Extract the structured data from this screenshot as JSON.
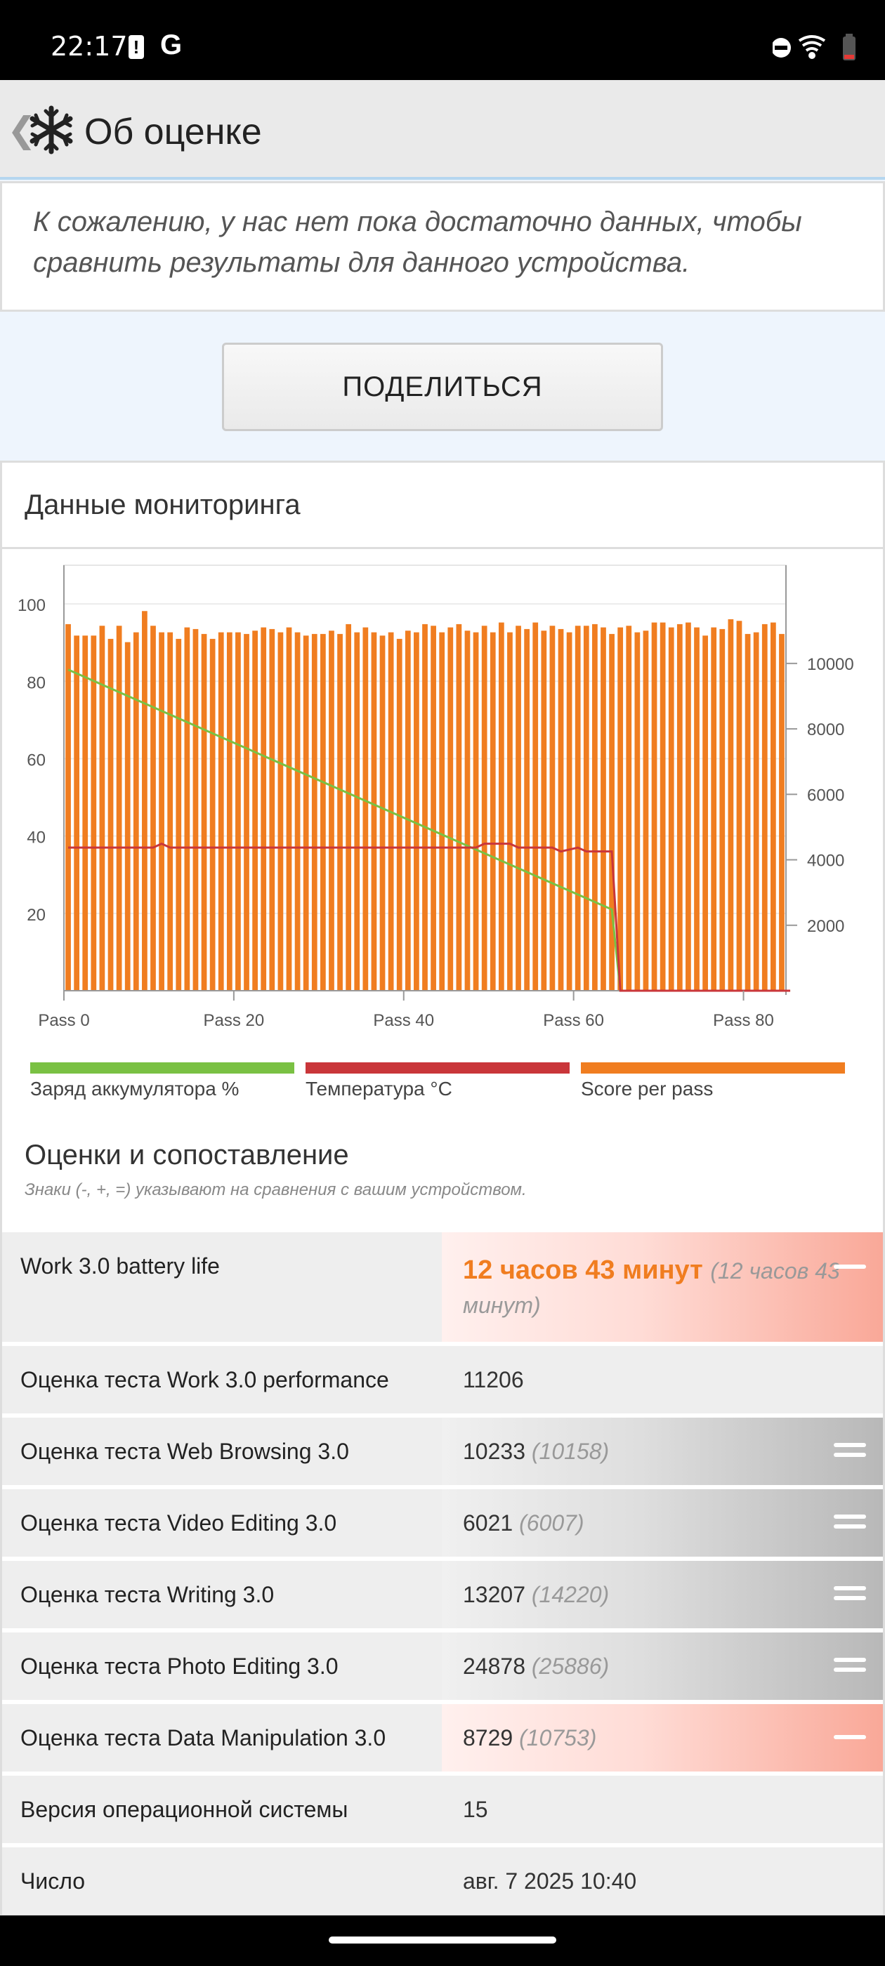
{
  "status_bar": {
    "time": "22:17",
    "google_glyph": "G",
    "alert_glyph": "!",
    "icons": [
      "dnd-icon",
      "wifi-icon",
      "battery-low-icon"
    ]
  },
  "app_bar": {
    "title": "Об оценке",
    "back_glyph": "❮",
    "logo_icon": "snowflake-icon"
  },
  "notice": {
    "text": "К сожалению, у нас нет пока достаточно данных, чтобы сравнить результаты для данного устройства."
  },
  "share_button": {
    "label": "ПОДЕЛИТЬСЯ"
  },
  "monitoring": {
    "title": "Данные мониторинга",
    "legend": [
      {
        "label": "Заряд аккумулятора %",
        "color": "#7ac143"
      },
      {
        "label": "Температура °C",
        "color": "#c9363a"
      },
      {
        "label": "Score per pass",
        "color": "#f07d20"
      }
    ]
  },
  "chart_data": {
    "type": "bar",
    "passes": 85,
    "x_ticks": [
      "Pass 0",
      "Pass 20",
      "Pass 40",
      "Pass 60",
      "Pass 80"
    ],
    "x_tick_values": [
      0,
      20,
      40,
      60,
      80
    ],
    "left_axis": {
      "ticks": [
        20,
        40,
        60,
        80,
        100
      ],
      "range": [
        0,
        110
      ]
    },
    "right_axis": {
      "ticks": [
        2000,
        4000,
        6000,
        8000,
        10000
      ],
      "range": [
        0,
        13000
      ]
    },
    "series": [
      {
        "name": "Score per pass",
        "axis": "right",
        "color": "#f07d20",
        "values": [
          11200,
          10850,
          10850,
          10850,
          11150,
          10750,
          11150,
          10650,
          10950,
          11600,
          11150,
          10950,
          10950,
          10750,
          11100,
          11050,
          10900,
          10750,
          10950,
          10950,
          10950,
          10900,
          11000,
          11100,
          11050,
          10950,
          11100,
          10950,
          10850,
          10900,
          10900,
          11000,
          10900,
          11200,
          10950,
          11100,
          10950,
          10850,
          10950,
          10750,
          11000,
          10950,
          11200,
          11150,
          10950,
          11100,
          11200,
          11000,
          10950,
          11150,
          10950,
          11250,
          10950,
          11150,
          11050,
          11250,
          11000,
          11150,
          11050,
          10950,
          11150,
          11150,
          11200,
          11100,
          10900,
          11100,
          11150,
          10950,
          11000,
          11250,
          11250,
          11100,
          11200,
          11250,
          11100,
          10850,
          11100,
          11050,
          11350,
          11300,
          10900,
          10950,
          11200,
          11250,
          10900
        ]
      },
      {
        "name": "Заряд аккумулятора %",
        "axis": "left",
        "color": "#7ac143",
        "points": [
          [
            0,
            83
          ],
          [
            64,
            21
          ],
          [
            65,
            0
          ],
          [
            85,
            0
          ]
        ]
      },
      {
        "name": "Температура °C",
        "axis": "left",
        "color": "#c9363a",
        "points": [
          [
            0,
            37
          ],
          [
            10,
            37
          ],
          [
            11,
            38
          ],
          [
            12,
            37
          ],
          [
            48,
            37
          ],
          [
            49,
            38
          ],
          [
            52,
            38
          ],
          [
            53,
            37
          ],
          [
            57,
            37
          ],
          [
            58,
            36
          ],
          [
            60,
            37
          ],
          [
            61,
            36
          ],
          [
            64,
            36
          ],
          [
            65,
            0
          ],
          [
            85,
            0
          ]
        ]
      }
    ]
  },
  "scores": {
    "title": "Оценки и сопоставление",
    "subtitle": "Знаки (-, +, =) указывают на сравнения с вашим устройством.",
    "battery": {
      "label": "Work 3.0 battery life",
      "value": "12 часов 43 минут",
      "ref": "(12 часов 43 минут)"
    },
    "rows": [
      {
        "label": "Оценка теста Work 3.0 performance",
        "value": "11206",
        "ref": "",
        "cmp": "none"
      },
      {
        "label": "Оценка теста Web Browsing 3.0",
        "value": "10233",
        "ref": "(10158)",
        "cmp": "equal"
      },
      {
        "label": "Оценка теста Video Editing 3.0",
        "value": "6021",
        "ref": "(6007)",
        "cmp": "equal"
      },
      {
        "label": "Оценка теста Writing 3.0",
        "value": "13207",
        "ref": "(14220)",
        "cmp": "equal"
      },
      {
        "label": "Оценка теста Photo Editing 3.0",
        "value": "24878",
        "ref": "(25886)",
        "cmp": "equal"
      },
      {
        "label": "Оценка теста Data Manipulation 3.0",
        "value": "8729",
        "ref": "(10753)",
        "cmp": "minus"
      },
      {
        "label": "Версия операционной системы",
        "value": "15",
        "ref": "",
        "cmp": "none"
      },
      {
        "label": "Число",
        "value": "авг. 7 2025 10:40",
        "ref": "",
        "cmp": "none"
      }
    ]
  }
}
